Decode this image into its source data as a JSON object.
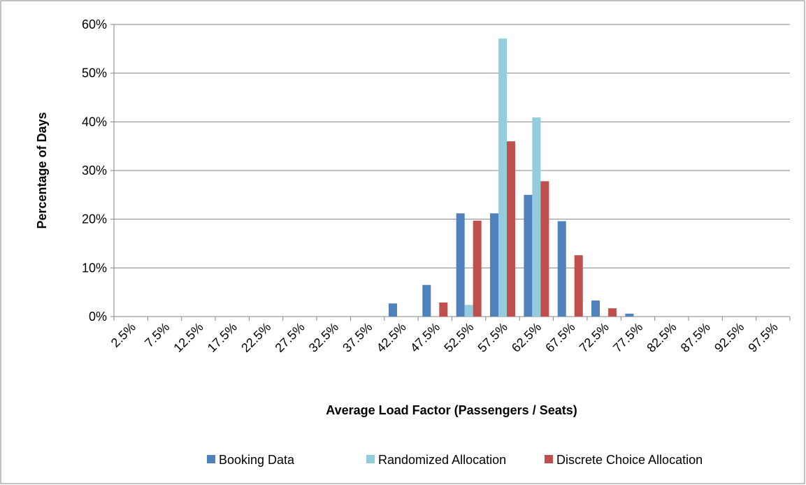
{
  "chart_data": {
    "type": "bar",
    "x_label": "Average Load Factor (Passengers / Seats)",
    "y_label": "Percentage of Days",
    "categories": [
      "2.5%",
      "7.5%",
      "12.5%",
      "17.5%",
      "22.5%",
      "27.5%",
      "32.5%",
      "37.5%",
      "42.5%",
      "47.5%",
      "52.5%",
      "57.5%",
      "62.5%",
      "67.5%",
      "72.5%",
      "77.5%",
      "82.5%",
      "87.5%",
      "92.5%",
      "97.5%"
    ],
    "series": [
      {
        "name": "Booking Data",
        "color": "#4f81bd",
        "values": [
          0,
          0,
          0,
          0,
          0,
          0,
          0,
          0,
          2.7,
          6.5,
          21.2,
          21.2,
          25,
          19.6,
          3.3,
          0.6,
          0,
          0,
          0,
          0
        ]
      },
      {
        "name": "Randomized Allocation",
        "color": "#93cddd",
        "values": [
          0,
          0,
          0,
          0,
          0,
          0,
          0,
          0,
          0,
          0,
          2.4,
          57.1,
          40.9,
          0,
          0,
          0,
          0,
          0,
          0,
          0
        ]
      },
      {
        "name": "Discrete Choice Allocation",
        "color": "#c0504d",
        "values": [
          0,
          0,
          0,
          0,
          0,
          0,
          0,
          0,
          0,
          2.9,
          19.7,
          36,
          27.8,
          12.6,
          1.7,
          0,
          0,
          0,
          0,
          0
        ]
      }
    ],
    "ylim": [
      0,
      60
    ],
    "yticks": [
      {
        "value": 0,
        "label": "0%"
      },
      {
        "value": 10,
        "label": "10%"
      },
      {
        "value": 20,
        "label": "20%"
      },
      {
        "value": 30,
        "label": "30%"
      },
      {
        "value": 40,
        "label": "40%"
      },
      {
        "value": 50,
        "label": "50%"
      },
      {
        "value": 60,
        "label": "60%"
      }
    ],
    "grid": true,
    "legend": "bottom"
  }
}
